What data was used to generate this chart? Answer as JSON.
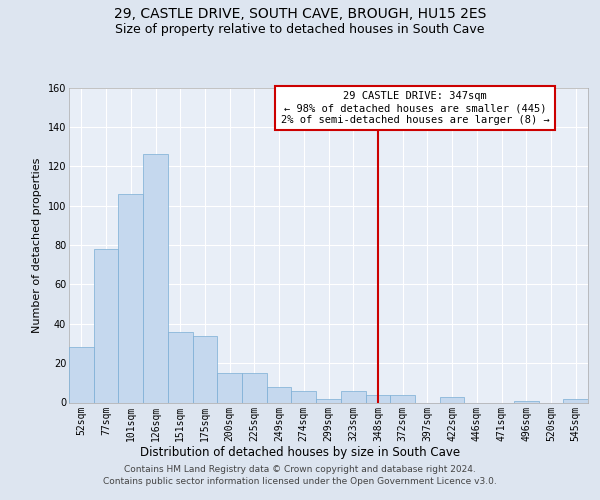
{
  "title": "29, CASTLE DRIVE, SOUTH CAVE, BROUGH, HU15 2ES",
  "subtitle": "Size of property relative to detached houses in South Cave",
  "xlabel": "Distribution of detached houses by size in South Cave",
  "ylabel": "Number of detached properties",
  "categories": [
    "52sqm",
    "77sqm",
    "101sqm",
    "126sqm",
    "151sqm",
    "175sqm",
    "200sqm",
    "225sqm",
    "249sqm",
    "274sqm",
    "299sqm",
    "323sqm",
    "348sqm",
    "372sqm",
    "397sqm",
    "422sqm",
    "446sqm",
    "471sqm",
    "496sqm",
    "520sqm",
    "545sqm"
  ],
  "values": [
    28,
    78,
    106,
    126,
    36,
    34,
    15,
    15,
    8,
    6,
    2,
    6,
    4,
    4,
    0,
    3,
    0,
    0,
    1,
    0,
    2
  ],
  "bar_color": "#c5d8ee",
  "bar_edge_color": "#7aadd4",
  "ylim": [
    0,
    160
  ],
  "yticks": [
    0,
    20,
    40,
    60,
    80,
    100,
    120,
    140,
    160
  ],
  "vline_bin": 12,
  "vline_color": "#cc0000",
  "legend_title": "29 CASTLE DRIVE: 347sqm",
  "legend_line1": "← 98% of detached houses are smaller (445)",
  "legend_line2": "2% of semi-detached houses are larger (8) →",
  "background_color": "#dde5f0",
  "plot_bg_color": "#e8eef7",
  "grid_color": "#ffffff",
  "title_fontsize": 10,
  "subtitle_fontsize": 9,
  "ylabel_fontsize": 8,
  "xlabel_fontsize": 8.5,
  "tick_fontsize": 7,
  "legend_fontsize": 7.5,
  "footer_fontsize": 6.5,
  "footer_line1": "Contains HM Land Registry data © Crown copyright and database right 2024.",
  "footer_line2": "Contains public sector information licensed under the Open Government Licence v3.0."
}
